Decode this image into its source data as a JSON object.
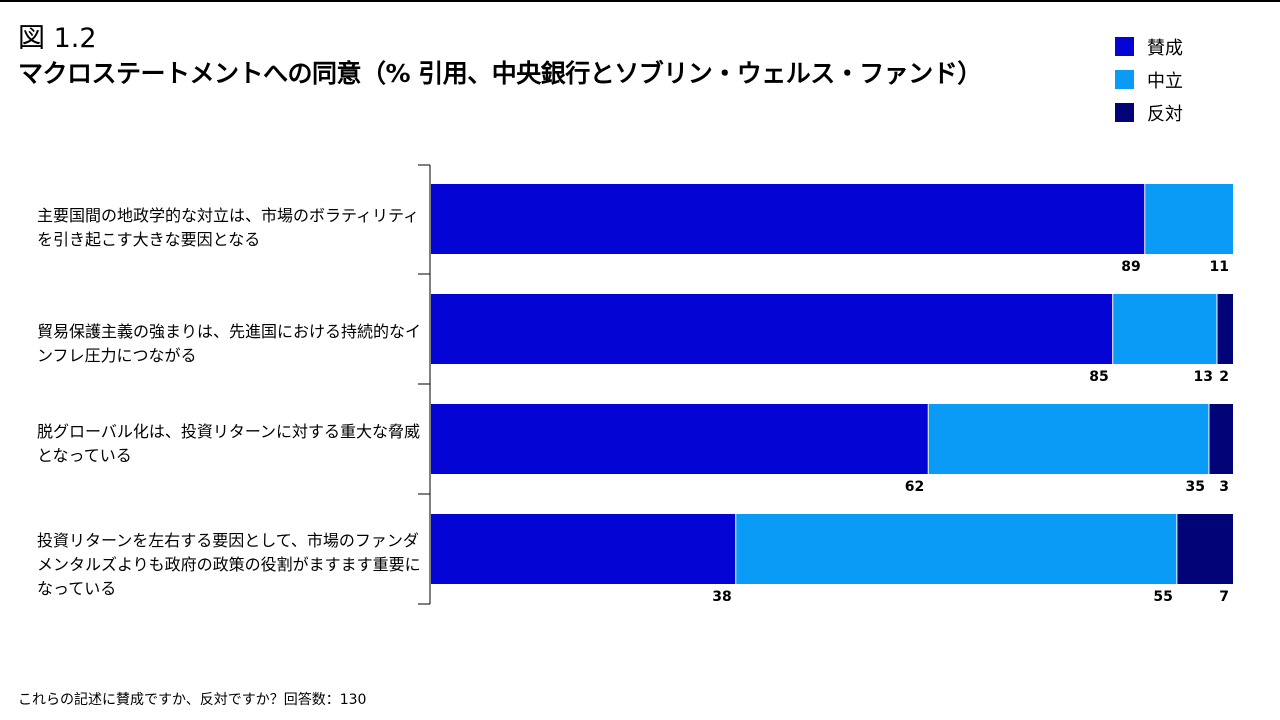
{
  "figure_label": "図 1.2",
  "title": "マクロステートメントへの同意（% 引用、中央銀行とソブリン・ウェルス・ファンド）",
  "footnote": "これらの記述に賛成ですか、反対ですか？回答数：130",
  "colors": {
    "agree": "#0404D4",
    "neutral": "#0A9BF7",
    "disagree": "#030378"
  },
  "chart_data": {
    "type": "bar",
    "orientation": "horizontal",
    "stacked": true,
    "categories": [
      "主要国間の地政学的な対立は、市場のボラティリティを引き起こす大きな要因となる",
      "貿易保護主義の強まりは、先進国における持続的なインフレ圧力につながる",
      "脱グローバル化は、投資リターンに対する重大な脅威となっている",
      "投資リターンを左右する要因として、市場のファンダメンタルズよりも政府の政策の役割がますます重要になっている"
    ],
    "series": [
      {
        "name": "賛成",
        "values": [
          89,
          85,
          62,
          38
        ]
      },
      {
        "name": "中立",
        "values": [
          11,
          13,
          35,
          55
        ]
      },
      {
        "name": "反対",
        "values": [
          0,
          2,
          3,
          7
        ]
      }
    ],
    "value_labels": [
      [
        "89",
        "11",
        ""
      ],
      [
        "85",
        "13",
        "2"
      ],
      [
        "62",
        "35",
        "3"
      ],
      [
        "38",
        "55",
        "7"
      ]
    ],
    "xlim": [
      0,
      100
    ],
    "legend_position": "top-right"
  }
}
